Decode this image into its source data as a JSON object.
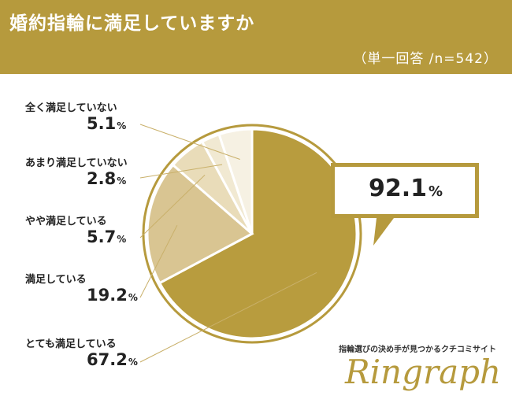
{
  "header": {
    "title": "婚約指輪に満足していますか",
    "subtitle": "（単一回答 /n=542）"
  },
  "colors": {
    "header_bg": "#b69a3d",
    "slices": [
      "#b89c3e",
      "#d9c592",
      "#e9dcb9",
      "#f1e9d2",
      "#f6f1e3"
    ]
  },
  "labels": [
    {
      "label": "全く満足していない",
      "value": "5.1",
      "unit": "%"
    },
    {
      "label": "あまり満足していない",
      "value": "2.8",
      "unit": "%"
    },
    {
      "label": "やや満足している",
      "value": "5.7",
      "unit": "%"
    },
    {
      "label": "満足している",
      "value": "19.2",
      "unit": "%"
    },
    {
      "label": "とても満足している",
      "value": "67.2",
      "unit": "%"
    }
  ],
  "callout": {
    "value": "92.1",
    "unit": "%"
  },
  "brand": {
    "tagline": "指輪選びの決め手が見つかるクチコミサイト",
    "logo": "Ringraph"
  },
  "chart_data": {
    "type": "pie",
    "title": "婚約指輪に満足していますか",
    "subtitle": "（単一回答 /n=542）",
    "categories": [
      "とても満足している",
      "満足している",
      "やや満足している",
      "あまり満足していない",
      "全く満足していない"
    ],
    "values": [
      67.2,
      19.2,
      5.7,
      2.8,
      5.1
    ],
    "unit": "%",
    "highlight": {
      "value": 92.1,
      "covers": [
        "とても満足している",
        "満足している",
        "やや満足している"
      ]
    }
  }
}
